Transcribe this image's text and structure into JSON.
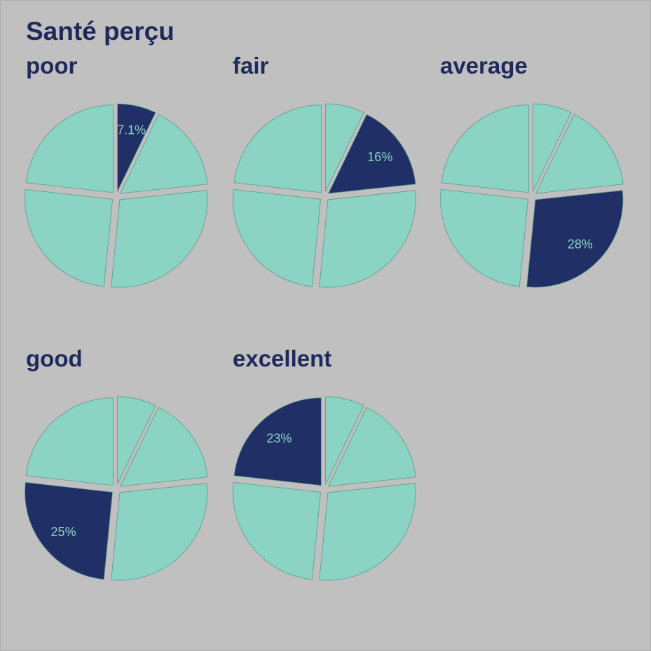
{
  "chart_data": {
    "type": "pie",
    "title": "Santé perçu",
    "categories": [
      "poor",
      "fair",
      "average",
      "good",
      "excellent"
    ],
    "values": [
      7.1,
      16,
      28,
      25,
      23
    ],
    "labels": [
      "7.1%",
      "16%",
      "28%",
      "25%",
      "23%"
    ],
    "highlight_color": "#203066",
    "base_color": "#8bd3c3",
    "label_color": "#8bd3c3",
    "stroke_color": "#5a9a8c",
    "background_color": "#c0c0c0",
    "title_color": "#1e2a5c"
  }
}
